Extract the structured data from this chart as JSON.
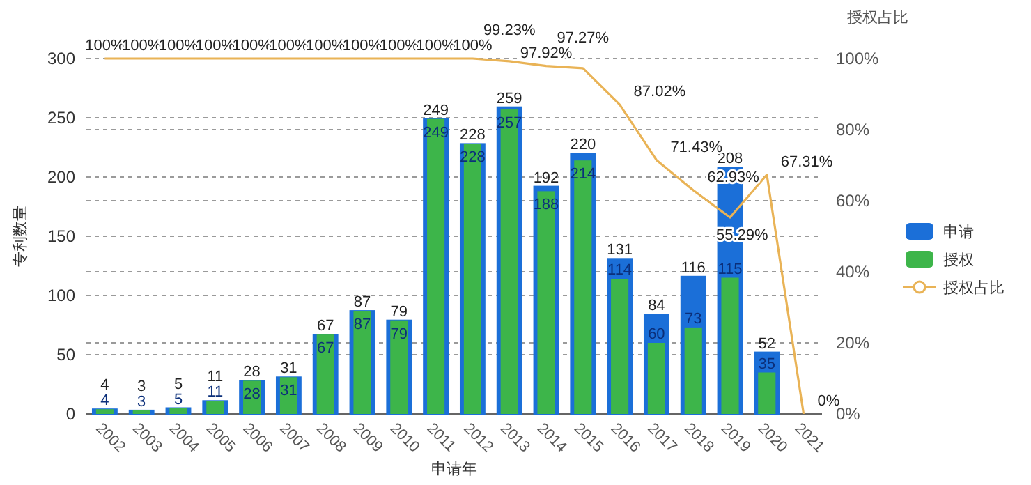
{
  "chart_data": {
    "type": "bar",
    "xlabel": "申请年",
    "ylabel": "专利数量",
    "y2label": "授权占比",
    "categories": [
      "2002",
      "2003",
      "2004",
      "2005",
      "2006",
      "2007",
      "2008",
      "2009",
      "2010",
      "2011",
      "2012",
      "2013",
      "2014",
      "2015",
      "2016",
      "2017",
      "2018",
      "2019",
      "2020",
      "2021"
    ],
    "series": [
      {
        "name": "申请",
        "color": "#1b6fd8",
        "values": [
          4,
          3,
          5,
          11,
          28,
          31,
          67,
          87,
          79,
          249,
          228,
          259,
          192,
          220,
          131,
          84,
          116,
          208,
          52,
          null
        ]
      },
      {
        "name": "授权",
        "color": "#3db54a",
        "values": [
          4,
          3,
          5,
          11,
          28,
          31,
          67,
          87,
          79,
          249,
          228,
          257,
          188,
          214,
          114,
          60,
          73,
          115,
          35,
          null
        ]
      },
      {
        "name": "授权占比",
        "type": "line",
        "axis": "y2",
        "color": "#e9b356",
        "values": [
          100,
          100,
          100,
          100,
          100,
          100,
          100,
          100,
          100,
          100,
          100,
          99.23,
          97.92,
          97.27,
          87.02,
          71.43,
          62.93,
          55.29,
          67.31,
          0
        ],
        "value_labels": [
          "100%",
          "100%",
          "100%",
          "100%",
          "100%",
          "100%",
          "100%",
          "100%",
          "100%",
          "100%",
          "100%",
          "99.23%",
          "97.92%",
          "97.27%",
          "87.02%",
          "71.43%",
          "62.93%",
          "55.29%",
          "67.31%",
          "0%"
        ]
      }
    ],
    "data_labels": true,
    "ylim": [
      0,
      300
    ],
    "yticks": [
      0,
      50,
      100,
      150,
      200,
      250,
      300
    ],
    "y2lim": [
      0,
      100
    ],
    "y2ticks": [
      {
        "value": 0,
        "label": "0%"
      },
      {
        "value": 20,
        "label": "20%"
      },
      {
        "value": 40,
        "label": "40%"
      },
      {
        "value": 60,
        "label": "60%"
      },
      {
        "value": 80,
        "label": "80%"
      },
      {
        "value": 100,
        "label": "100%"
      }
    ],
    "grid": true,
    "legend": "right"
  }
}
